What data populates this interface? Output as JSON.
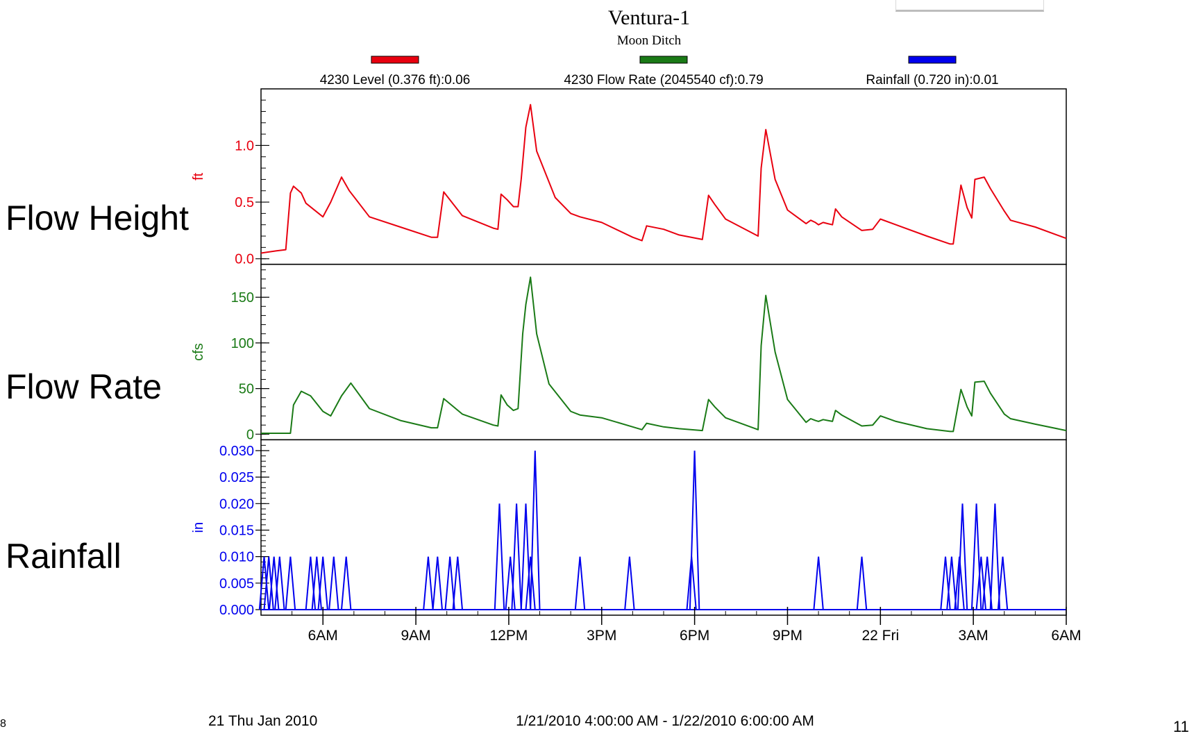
{
  "chart_data": {
    "type": "line",
    "title": "Ventura-1",
    "subtitle": "Moon Ditch",
    "legend": [
      {
        "label": "4230 Level (0.376 ft):0.06",
        "color": "#e8000f"
      },
      {
        "label": "4230 Flow Rate (2045540 cf):0.79",
        "color": "#1a7a16"
      },
      {
        "label": "Rainfall (0.720 in):0.01",
        "color": "#0000ee"
      }
    ],
    "x_ticks": [
      "6AM",
      "9AM",
      "12PM",
      "3PM",
      "6PM",
      "9PM",
      "22 Fri",
      "3AM",
      "6AM"
    ],
    "x_start_label": "21 Thu Jan 2010",
    "x_range_label": "1/21/2010 4:00:00 AM - 1/22/2010 6:00:00 AM",
    "x_range_hours": [
      4,
      30
    ],
    "panels": [
      {
        "name": "Flow Height",
        "ylabel": "ft",
        "color": "#e8000f",
        "ylim": [
          0,
          1.45
        ],
        "yticks": [
          0.0,
          0.5,
          1.0
        ],
        "ytick_labels": [
          "0.0",
          "0.5",
          "1.0"
        ],
        "style": "line",
        "x": [
          4.0,
          4.5,
          4.8,
          4.95,
          5.05,
          5.3,
          5.45,
          6.0,
          6.25,
          6.6,
          6.85,
          7.5,
          8.5,
          9.5,
          9.7,
          9.9,
          10.5,
          11.5,
          11.65,
          11.75,
          11.95,
          12.15,
          12.3,
          12.4,
          12.55,
          12.7,
          12.9,
          13.5,
          14.0,
          14.3,
          15.0,
          16.0,
          16.3,
          16.45,
          17.0,
          17.5,
          18.25,
          18.45,
          18.65,
          19.0,
          20.05,
          20.15,
          20.3,
          20.6,
          21.0,
          21.6,
          21.75,
          21.9,
          22.0,
          22.15,
          22.3,
          22.45,
          22.55,
          22.75,
          23.4,
          23.75,
          24.0,
          24.5,
          25.5,
          26.25,
          26.35,
          26.6,
          26.8,
          26.95,
          27.05,
          27.35,
          27.55,
          28.0,
          28.2,
          29.0,
          30.0
        ],
        "y": [
          0.05,
          0.07,
          0.08,
          0.58,
          0.64,
          0.58,
          0.49,
          0.37,
          0.5,
          0.72,
          0.6,
          0.37,
          0.28,
          0.19,
          0.19,
          0.59,
          0.38,
          0.27,
          0.26,
          0.57,
          0.52,
          0.46,
          0.46,
          0.7,
          1.16,
          1.36,
          0.95,
          0.54,
          0.4,
          0.37,
          0.32,
          0.19,
          0.16,
          0.29,
          0.26,
          0.21,
          0.17,
          0.56,
          0.48,
          0.35,
          0.2,
          0.8,
          1.14,
          0.7,
          0.43,
          0.31,
          0.34,
          0.32,
          0.3,
          0.32,
          0.31,
          0.3,
          0.44,
          0.37,
          0.25,
          0.26,
          0.35,
          0.3,
          0.2,
          0.13,
          0.13,
          0.65,
          0.45,
          0.36,
          0.7,
          0.72,
          0.62,
          0.42,
          0.34,
          0.28,
          0.18
        ]
      },
      {
        "name": "Flow Rate",
        "ylabel": "cfs",
        "color": "#1a7a16",
        "ylim": [
          0,
          180
        ],
        "yticks": [
          0,
          50,
          100,
          150
        ],
        "ytick_labels": [
          "0",
          "50",
          "100",
          "150"
        ],
        "style": "line",
        "x": [
          4.0,
          4.5,
          4.95,
          5.05,
          5.3,
          5.6,
          6.0,
          6.25,
          6.6,
          6.9,
          7.5,
          8.5,
          9.5,
          9.7,
          9.9,
          10.5,
          11.5,
          11.65,
          11.75,
          11.95,
          12.15,
          12.3,
          12.45,
          12.55,
          12.7,
          12.9,
          13.3,
          14.0,
          14.3,
          15.0,
          16.0,
          16.3,
          16.45,
          17.0,
          17.5,
          18.25,
          18.45,
          18.65,
          19.0,
          20.05,
          20.15,
          20.3,
          20.6,
          21.0,
          21.6,
          21.75,
          21.9,
          22.0,
          22.15,
          22.3,
          22.45,
          22.55,
          22.75,
          23.4,
          23.75,
          24.0,
          24.5,
          25.5,
          26.25,
          26.35,
          26.6,
          26.8,
          26.95,
          27.05,
          27.35,
          27.55,
          28.0,
          28.2,
          29.0,
          30.0
        ],
        "y": [
          1,
          1,
          1,
          32,
          47,
          42,
          25,
          20,
          42,
          56,
          28,
          15,
          7,
          7,
          39,
          22,
          10,
          9,
          43,
          32,
          26,
          28,
          110,
          142,
          172,
          110,
          55,
          25,
          21,
          18,
          8,
          5,
          12,
          8,
          6,
          4,
          38,
          30,
          18,
          5,
          97,
          152,
          90,
          38,
          13,
          17,
          15,
          14,
          16,
          15,
          14,
          26,
          21,
          9,
          10,
          20,
          14,
          6,
          3,
          3,
          49,
          30,
          20,
          57,
          58,
          45,
          22,
          17,
          11,
          4
        ]
      },
      {
        "name": "Rainfall",
        "ylabel": "in",
        "color": "#0000ee",
        "ylim": [
          0,
          0.031
        ],
        "yticks": [
          0.0,
          0.005,
          0.01,
          0.015,
          0.02,
          0.025,
          0.03
        ],
        "ytick_labels": [
          "0.000",
          "0.005",
          "0.010",
          "0.015",
          "0.020",
          "0.025",
          "0.030"
        ],
        "style": "spikes",
        "x": [
          4.1,
          4.25,
          4.42,
          4.6,
          4.95,
          5.6,
          5.8,
          6.0,
          6.35,
          6.75,
          9.4,
          9.7,
          10.1,
          10.35,
          11.7,
          12.05,
          12.25,
          12.55,
          12.7,
          12.85,
          14.3,
          15.9,
          17.9,
          18.0,
          22.0,
          23.4,
          26.1,
          26.3,
          26.55,
          26.65,
          27.1,
          27.25,
          27.45,
          27.7,
          27.95
        ],
        "y": [
          0.01,
          0.01,
          0.01,
          0.01,
          0.01,
          0.01,
          0.01,
          0.01,
          0.01,
          0.01,
          0.01,
          0.01,
          0.01,
          0.01,
          0.02,
          0.01,
          0.02,
          0.02,
          0.01,
          0.03,
          0.01,
          0.01,
          0.01,
          0.03,
          0.01,
          0.01,
          0.01,
          0.01,
          0.01,
          0.02,
          0.02,
          0.01,
          0.01,
          0.02,
          0.01
        ]
      }
    ]
  },
  "side_labels": {
    "flow_height": "Flow Height",
    "flow_rate": "Flow Rate",
    "rainfall": "Rainfall"
  },
  "footer": {
    "left_digit": "8",
    "right_number": "11"
  }
}
